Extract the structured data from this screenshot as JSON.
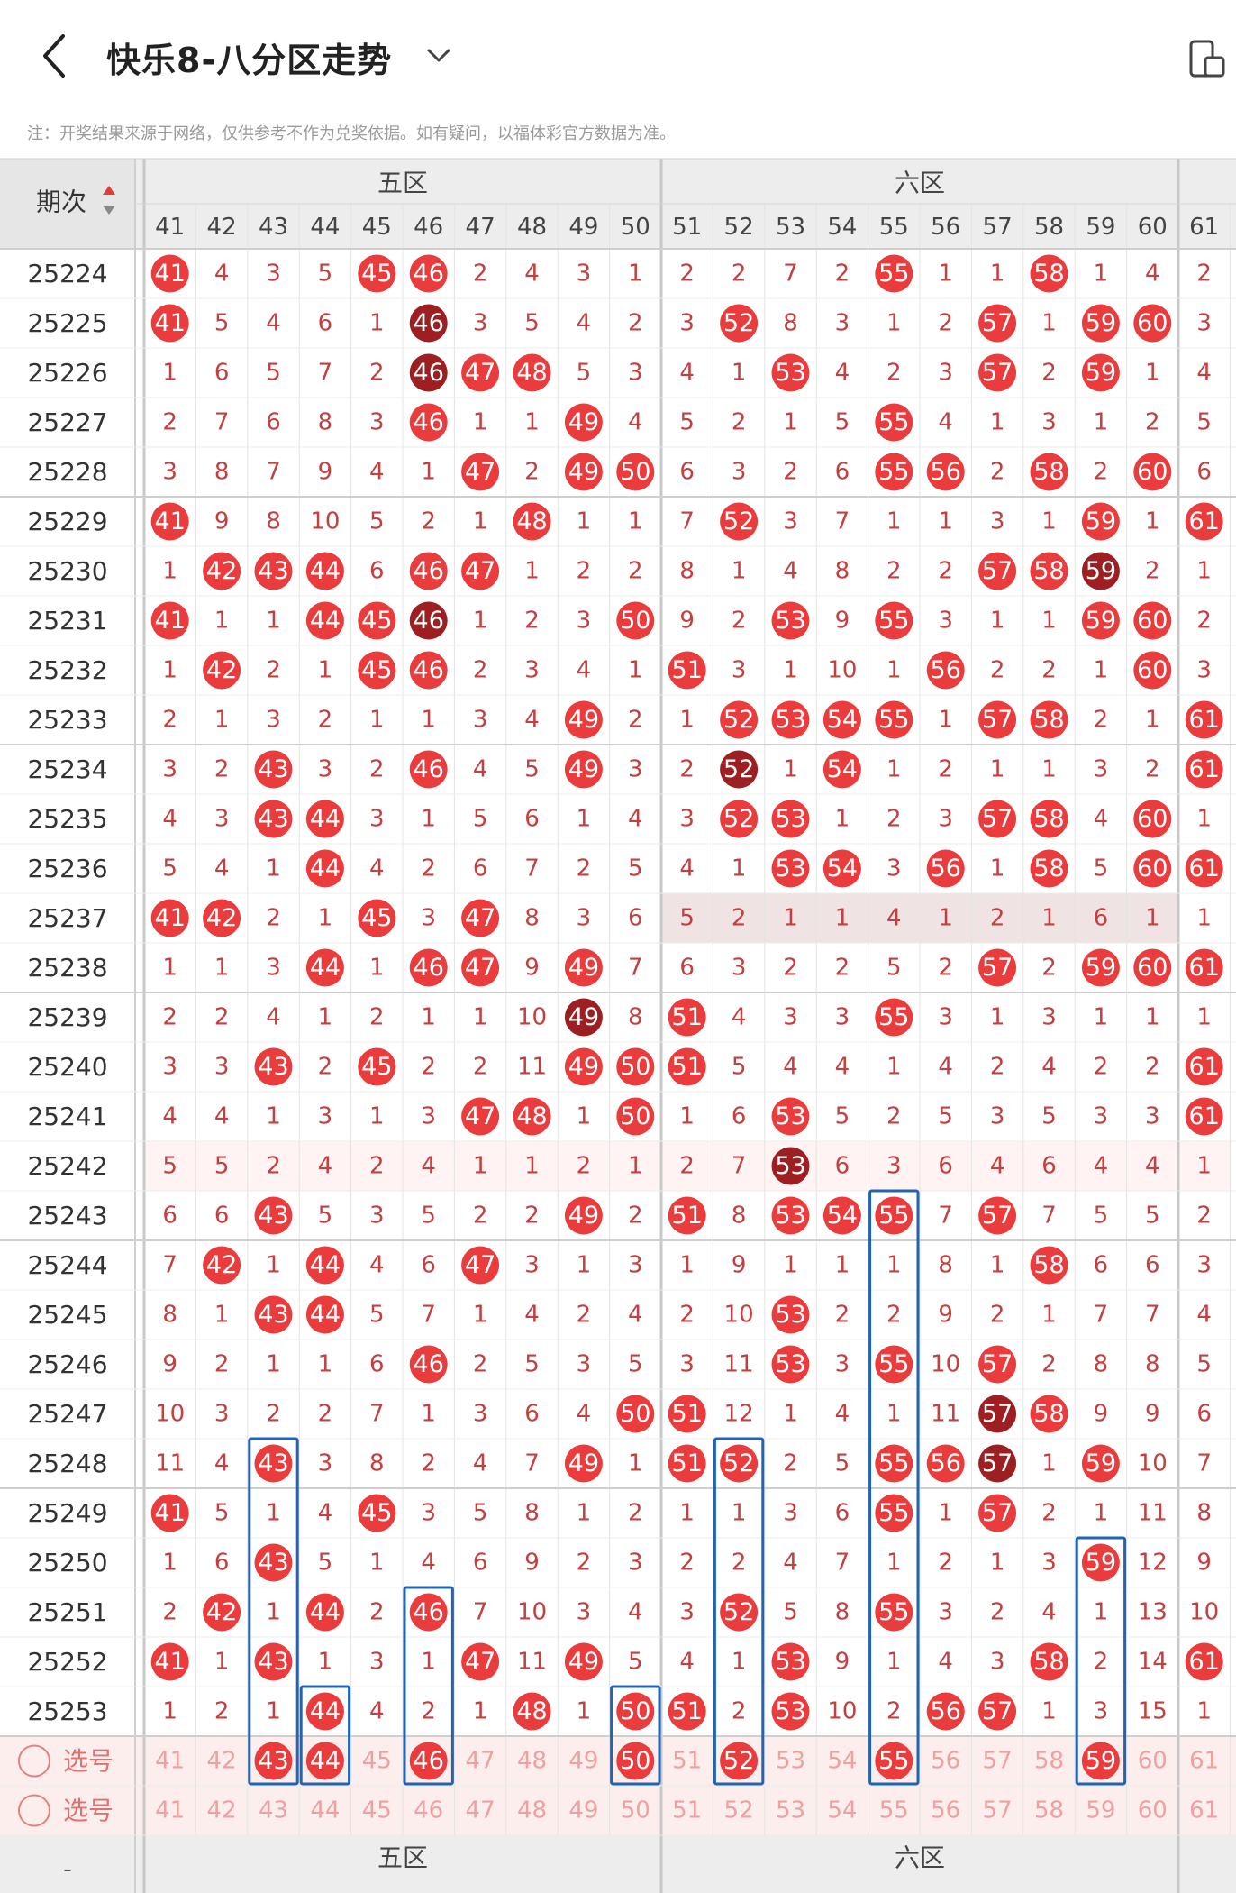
{
  "header": {
    "title": "快乐8-八分区走势",
    "notice": "注：开奖结果来源于网络，仅供参考不作为兑奖依据。如有疑问，以福体彩官方数据为准。"
  },
  "table": {
    "period_header": "期次",
    "zones": [
      {
        "label": "五区",
        "cols": [
          41,
          42,
          43,
          44,
          45,
          46,
          47,
          48,
          49,
          50
        ]
      },
      {
        "label": "六区",
        "cols": [
          51,
          52,
          53,
          54,
          55,
          56,
          57,
          58,
          59,
          60
        ]
      }
    ],
    "extra_col": 61,
    "columns": [
      41,
      42,
      43,
      44,
      45,
      46,
      47,
      48,
      49,
      50,
      51,
      52,
      53,
      54,
      55,
      56,
      57,
      58,
      59,
      60,
      61
    ],
    "rows": [
      {
        "period": "25224",
        "cells": [
          "41",
          "4",
          "3",
          "5",
          "45",
          "46",
          "2",
          "4",
          "3",
          "1",
          "2",
          "2",
          "7",
          "2",
          "55",
          "1",
          "1",
          "58",
          "1",
          "4",
          "2"
        ]
      },
      {
        "period": "25225",
        "cells": [
          "41",
          "5",
          "4",
          "6",
          "1",
          "46",
          "3",
          "5",
          "4",
          "2",
          "3",
          "52",
          "8",
          "3",
          "1",
          "2",
          "57",
          "1",
          "59",
          "60",
          "3"
        ]
      },
      {
        "period": "25226",
        "cells": [
          "1",
          "6",
          "5",
          "7",
          "2",
          "46",
          "47",
          "48",
          "5",
          "3",
          "4",
          "1",
          "53",
          "4",
          "2",
          "3",
          "57",
          "2",
          "59",
          "1",
          "4"
        ]
      },
      {
        "period": "25227",
        "cells": [
          "2",
          "7",
          "6",
          "8",
          "3",
          "46",
          "1",
          "1",
          "49",
          "4",
          "5",
          "2",
          "1",
          "5",
          "55",
          "4",
          "1",
          "3",
          "1",
          "2",
          "5"
        ]
      },
      {
        "period": "25228",
        "cells": [
          "3",
          "8",
          "7",
          "9",
          "4",
          "1",
          "47",
          "2",
          "49",
          "50",
          "6",
          "3",
          "2",
          "6",
          "55",
          "56",
          "2",
          "58",
          "2",
          "60",
          "6"
        ]
      },
      {
        "period": "25229",
        "cells": [
          "41",
          "9",
          "8",
          "10",
          "5",
          "2",
          "1",
          "48",
          "1",
          "1",
          "7",
          "52",
          "3",
          "7",
          "1",
          "1",
          "3",
          "1",
          "59",
          "1",
          "61"
        ]
      },
      {
        "period": "25230",
        "cells": [
          "1",
          "42",
          "43",
          "44",
          "6",
          "46",
          "47",
          "1",
          "2",
          "2",
          "8",
          "1",
          "4",
          "8",
          "2",
          "2",
          "57",
          "58",
          "59",
          "2",
          "1"
        ]
      },
      {
        "period": "25231",
        "cells": [
          "41",
          "1",
          "1",
          "44",
          "45",
          "46",
          "1",
          "2",
          "3",
          "50",
          "9",
          "2",
          "53",
          "9",
          "55",
          "3",
          "1",
          "1",
          "59",
          "60",
          "2"
        ]
      },
      {
        "period": "25232",
        "cells": [
          "1",
          "42",
          "2",
          "1",
          "45",
          "46",
          "2",
          "3",
          "4",
          "1",
          "51",
          "3",
          "1",
          "10",
          "1",
          "56",
          "2",
          "2",
          "1",
          "60",
          "3"
        ]
      },
      {
        "period": "25233",
        "cells": [
          "2",
          "1",
          "3",
          "2",
          "1",
          "1",
          "3",
          "4",
          "49",
          "2",
          "1",
          "52",
          "53",
          "54",
          "55",
          "1",
          "57",
          "58",
          "2",
          "1",
          "61"
        ]
      },
      {
        "period": "25234",
        "cells": [
          "3",
          "2",
          "43",
          "3",
          "2",
          "46",
          "4",
          "5",
          "49",
          "3",
          "2",
          "52",
          "1",
          "54",
          "1",
          "2",
          "1",
          "1",
          "3",
          "2",
          "61"
        ]
      },
      {
        "period": "25235",
        "cells": [
          "4",
          "3",
          "43",
          "44",
          "3",
          "1",
          "5",
          "6",
          "1",
          "4",
          "3",
          "52",
          "53",
          "1",
          "2",
          "3",
          "57",
          "58",
          "4",
          "60",
          "1"
        ]
      },
      {
        "period": "25236",
        "cells": [
          "5",
          "4",
          "1",
          "44",
          "4",
          "2",
          "6",
          "7",
          "2",
          "5",
          "4",
          "1",
          "53",
          "54",
          "3",
          "56",
          "1",
          "58",
          "5",
          "60",
          "61"
        ]
      },
      {
        "period": "25237",
        "cells": [
          "41",
          "42",
          "2",
          "1",
          "45",
          "3",
          "47",
          "8",
          "3",
          "6",
          "5",
          "2",
          "1",
          "1",
          "4",
          "1",
          "2",
          "1",
          "6",
          "1",
          "1"
        ]
      },
      {
        "period": "25238",
        "cells": [
          "1",
          "1",
          "3",
          "44",
          "1",
          "46",
          "47",
          "9",
          "49",
          "7",
          "6",
          "3",
          "2",
          "2",
          "5",
          "2",
          "57",
          "2",
          "59",
          "60",
          "61"
        ]
      },
      {
        "period": "25239",
        "cells": [
          "2",
          "2",
          "4",
          "1",
          "2",
          "1",
          "1",
          "10",
          "49",
          "8",
          "51",
          "4",
          "3",
          "3",
          "55",
          "3",
          "1",
          "3",
          "1",
          "1",
          "1"
        ]
      },
      {
        "period": "25240",
        "cells": [
          "3",
          "3",
          "43",
          "2",
          "45",
          "2",
          "2",
          "11",
          "49",
          "50",
          "51",
          "5",
          "4",
          "4",
          "1",
          "4",
          "2",
          "4",
          "2",
          "2",
          "61"
        ]
      },
      {
        "period": "25241",
        "cells": [
          "4",
          "4",
          "1",
          "3",
          "1",
          "3",
          "47",
          "48",
          "1",
          "50",
          "1",
          "6",
          "53",
          "5",
          "2",
          "5",
          "3",
          "5",
          "3",
          "3",
          "61"
        ]
      },
      {
        "period": "25242",
        "cells": [
          "5",
          "5",
          "2",
          "4",
          "2",
          "4",
          "1",
          "1",
          "2",
          "1",
          "2",
          "7",
          "53",
          "6",
          "3",
          "6",
          "4",
          "6",
          "4",
          "4",
          "1"
        ]
      },
      {
        "period": "25243",
        "cells": [
          "6",
          "6",
          "43",
          "5",
          "3",
          "5",
          "2",
          "2",
          "49",
          "2",
          "51",
          "8",
          "53",
          "54",
          "55",
          "7",
          "57",
          "7",
          "5",
          "5",
          "2"
        ]
      },
      {
        "period": "25244",
        "cells": [
          "7",
          "42",
          "1",
          "44",
          "4",
          "6",
          "47",
          "3",
          "1",
          "3",
          "1",
          "9",
          "1",
          "1",
          "1",
          "8",
          "1",
          "58",
          "6",
          "6",
          "3"
        ]
      },
      {
        "period": "25245",
        "cells": [
          "8",
          "1",
          "43",
          "44",
          "5",
          "7",
          "1",
          "4",
          "2",
          "4",
          "2",
          "10",
          "53",
          "2",
          "2",
          "9",
          "2",
          "1",
          "7",
          "7",
          "4"
        ]
      },
      {
        "period": "25246",
        "cells": [
          "9",
          "2",
          "1",
          "1",
          "6",
          "46",
          "2",
          "5",
          "3",
          "5",
          "3",
          "11",
          "53",
          "3",
          "55",
          "10",
          "57",
          "2",
          "8",
          "8",
          "5"
        ]
      },
      {
        "period": "25247",
        "cells": [
          "10",
          "3",
          "2",
          "2",
          "7",
          "1",
          "3",
          "6",
          "4",
          "50",
          "51",
          "12",
          "1",
          "4",
          "1",
          "11",
          "57",
          "58",
          "9",
          "9",
          "6"
        ]
      },
      {
        "period": "25248",
        "cells": [
          "11",
          "4",
          "43",
          "3",
          "8",
          "2",
          "4",
          "7",
          "49",
          "1",
          "51",
          "52",
          "2",
          "5",
          "55",
          "56",
          "57",
          "1",
          "59",
          "10",
          "7"
        ]
      },
      {
        "period": "25249",
        "cells": [
          "41",
          "5",
          "1",
          "4",
          "45",
          "3",
          "5",
          "8",
          "1",
          "2",
          "1",
          "1",
          "3",
          "6",
          "55",
          "1",
          "57",
          "2",
          "1",
          "11",
          "8"
        ]
      },
      {
        "period": "25250",
        "cells": [
          "1",
          "6",
          "43",
          "5",
          "1",
          "4",
          "6",
          "9",
          "2",
          "3",
          "2",
          "2",
          "4",
          "7",
          "1",
          "2",
          "1",
          "3",
          "59",
          "12",
          "9"
        ]
      },
      {
        "period": "25251",
        "cells": [
          "2",
          "42",
          "1",
          "44",
          "2",
          "46",
          "7",
          "10",
          "3",
          "4",
          "3",
          "52",
          "5",
          "8",
          "55",
          "3",
          "2",
          "4",
          "1",
          "13",
          "10"
        ]
      },
      {
        "period": "25252",
        "cells": [
          "41",
          "1",
          "43",
          "1",
          "3",
          "1",
          "47",
          "11",
          "49",
          "5",
          "4",
          "1",
          "53",
          "9",
          "1",
          "4",
          "3",
          "58",
          "2",
          "14",
          "61"
        ]
      },
      {
        "period": "25253",
        "cells": [
          "1",
          "2",
          "1",
          "44",
          "4",
          "2",
          "1",
          "48",
          "1",
          "50",
          "51",
          "2",
          "53",
          "10",
          "2",
          "56",
          "57",
          "1",
          "3",
          "15",
          "1"
        ]
      }
    ],
    "selection_rows": [
      {
        "label": "选号",
        "picked": [
          "43",
          "44",
          "46",
          "50",
          "52",
          "55",
          "59"
        ]
      },
      {
        "label": "选号",
        "picked": []
      }
    ],
    "legend": {
      "hot": "#d71f1f",
      "warm": "#ea4545",
      "cold": "#a41f22"
    },
    "footer_zones": [
      "五区",
      "六区"
    ],
    "footer_dash": "-"
  },
  "colors": {
    "ball_red": "#ea3c3c",
    "ball_dark": "#9e1f22",
    "miss_text": "#c44040",
    "highlight_box": "#1f64b5",
    "band": "#fdeeee",
    "header_bg": "#ededed"
  }
}
